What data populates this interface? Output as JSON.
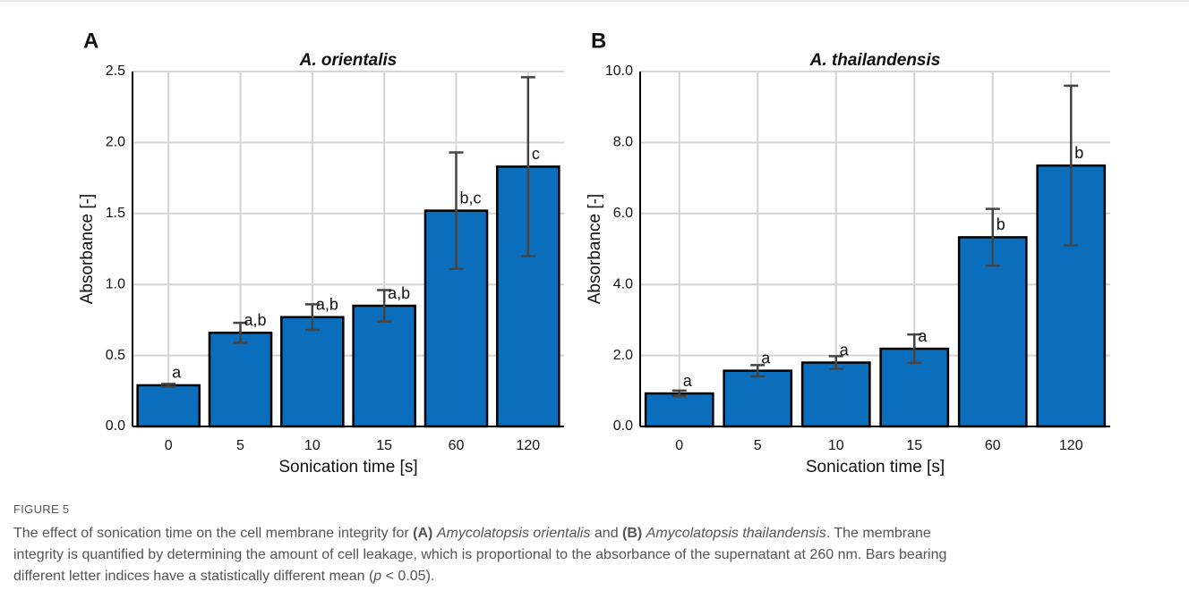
{
  "chart_data": [
    {
      "type": "bar",
      "panel": "A",
      "title": "A. orientalis",
      "x_label": "Sonication time [s]",
      "y_label": "Absorbance [-]",
      "categories": [
        "0",
        "5",
        "10",
        "15",
        "60",
        "120"
      ],
      "values": [
        0.29,
        0.66,
        0.77,
        0.85,
        1.52,
        1.83
      ],
      "errors": [
        0.01,
        0.07,
        0.09,
        0.11,
        0.41,
        0.63
      ],
      "letters": [
        "a",
        "a,b",
        "a,b",
        "a,b",
        "b,c",
        "c"
      ],
      "color": "#0a6ebd",
      "error_color": "#444444",
      "ylim": [
        0,
        2.5
      ],
      "yticks": [
        {
          "value": 0,
          "label": "0.0"
        },
        0.5,
        {
          "value": 1,
          "label": "1.0"
        },
        1.5,
        {
          "value": 2,
          "label": "2.0"
        },
        2.5
      ],
      "grid": true
    },
    {
      "type": "bar",
      "panel": "B",
      "title": "A. thailandensis",
      "x_label": "Sonication time [s]",
      "y_label": "Absorbance [-]",
      "categories": [
        "0",
        "5",
        "10",
        "15",
        "60",
        "120"
      ],
      "values": [
        0.93,
        1.57,
        1.8,
        2.19,
        5.33,
        7.35
      ],
      "errors": [
        0.08,
        0.16,
        0.18,
        0.4,
        0.8,
        2.25
      ],
      "letters": [
        "a",
        "a",
        "a",
        "a",
        "b",
        "b"
      ],
      "color": "#0a6ebd",
      "error_color": "#444444",
      "ylim": [
        0,
        10
      ],
      "yticks": [
        {
          "value": 0,
          "label": "0.0"
        },
        {
          "value": 2,
          "label": "2.0"
        },
        {
          "value": 4,
          "label": "4.0"
        },
        {
          "value": 6,
          "label": "6.0"
        },
        {
          "value": 8,
          "label": "8.0"
        },
        {
          "value": 10,
          "label": "10.0"
        }
      ],
      "grid": true
    }
  ],
  "caption": {
    "label": "FIGURE 5",
    "lines": [
      [
        {
          "text": "The effect of sonication time on the cell membrane integrity for "
        },
        {
          "text": "(A)",
          "bold": true
        },
        {
          "text": " "
        },
        {
          "text": "Amycolatopsis orientalis",
          "italic": true
        },
        {
          "text": " and "
        },
        {
          "text": "(B)",
          "bold": true
        },
        {
          "text": " "
        },
        {
          "text": "Amycolatopsis thailandensis",
          "italic": true
        },
        {
          "text": ". The membrane"
        }
      ],
      [
        {
          "text": "integrity is quantified by determining the amount of cell leakage, which is proportional to the absorbance of the supernatant at 260 nm. Bars bearing"
        }
      ],
      [
        {
          "text": "different letter indices have a statistically different mean ("
        },
        {
          "text": "p",
          "italic": true
        },
        {
          "text": " < 0.05)."
        }
      ]
    ]
  }
}
